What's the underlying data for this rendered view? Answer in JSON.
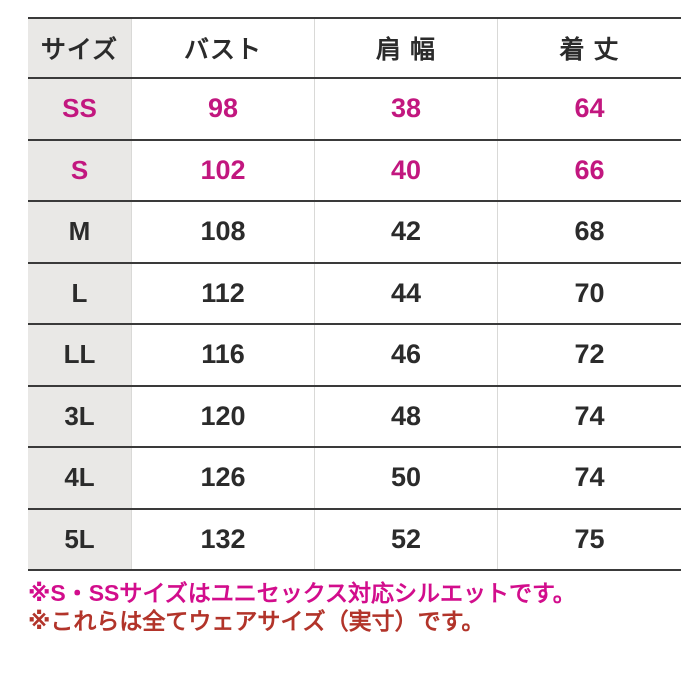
{
  "table": {
    "columns": [
      "サイズ",
      "バスト",
      "肩 幅",
      "着 丈"
    ],
    "rows": [
      {
        "size": "SS",
        "bust": "98",
        "shoulder": "38",
        "length": "64",
        "highlighted": true
      },
      {
        "size": "S",
        "bust": "102",
        "shoulder": "40",
        "length": "66",
        "highlighted": true
      },
      {
        "size": "M",
        "bust": "108",
        "shoulder": "42",
        "length": "68",
        "highlighted": false
      },
      {
        "size": "L",
        "bust": "112",
        "shoulder": "44",
        "length": "70",
        "highlighted": false
      },
      {
        "size": "LL",
        "bust": "116",
        "shoulder": "46",
        "length": "72",
        "highlighted": false
      },
      {
        "size": "3L",
        "bust": "120",
        "shoulder": "48",
        "length": "74",
        "highlighted": false
      },
      {
        "size": "4L",
        "bust": "126",
        "shoulder": "50",
        "length": "74",
        "highlighted": false
      },
      {
        "size": "5L",
        "bust": "132",
        "shoulder": "52",
        "length": "75",
        "highlighted": false
      }
    ]
  },
  "notes": [
    "※S・SSサイズはユニセックス対応シルエットです。",
    "※これらは全てウェアサイズ（実寸）です。"
  ],
  "colors": {
    "magenta": "#c2177f",
    "notepink": "#d20d8c",
    "notered": "#b2342a",
    "line": "#3a3a3a",
    "vline": "#d9d9d7",
    "graybg": "#e9e8e6",
    "ink": "#2b2b2b"
  }
}
